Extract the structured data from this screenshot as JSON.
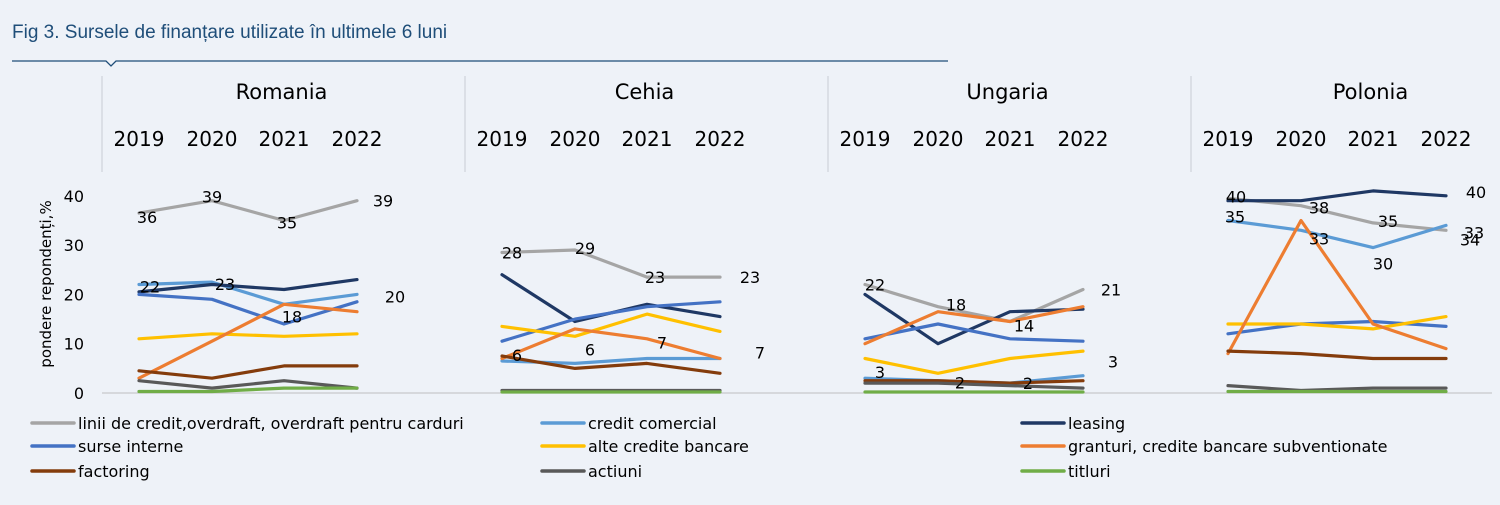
{
  "figure_title": "Fig 3. Sursele de finanțare utilizate în ultimele 6 luni",
  "chart_data": {
    "type": "line",
    "ylabel": "pondere repondenți,%",
    "ylim": [
      0,
      40
    ],
    "yticks": [
      "0",
      "10",
      "20",
      "30",
      "40"
    ],
    "grid": false,
    "legend_position": "bottom",
    "panels": [
      "Romania",
      "Cehia",
      "Ungaria",
      "Polonia"
    ],
    "years": [
      "2019",
      "2020",
      "2021",
      "2022"
    ],
    "series": [
      {
        "key": "linii",
        "name": "linii de credit,overdraft, overdraft pentru carduri",
        "color": "#a5a5a5",
        "values": [
          [
            36.5,
            39,
            35,
            39
          ],
          [
            28.5,
            29,
            23.5,
            23.5
          ],
          [
            22,
            17.5,
            14.5,
            21
          ],
          [
            39.5,
            38,
            34.5,
            33
          ]
        ]
      },
      {
        "key": "credit_comercial",
        "name": "credit comercial",
        "color": "#5b9bd5",
        "values": [
          [
            22,
            22.5,
            18,
            20
          ],
          [
            6.5,
            6,
            7,
            7
          ],
          [
            3,
            2.5,
            2,
            3.5
          ],
          [
            35,
            33,
            29.5,
            34
          ]
        ]
      },
      {
        "key": "leasing",
        "name": "leasing",
        "color": "#1f3864",
        "values": [
          [
            20.5,
            22,
            21,
            23
          ],
          [
            24,
            14.5,
            18,
            15.5
          ],
          [
            20,
            10,
            16.5,
            17
          ],
          [
            39,
            39,
            41,
            40
          ]
        ]
      },
      {
        "key": "surse_interne",
        "name": "surse interne",
        "color": "#4472c4",
        "values": [
          [
            20,
            19,
            14,
            18.5
          ],
          [
            10.5,
            15,
            17.5,
            18.5
          ],
          [
            11,
            14,
            11,
            10.5
          ],
          [
            12,
            14,
            14.5,
            13.5
          ]
        ]
      },
      {
        "key": "alte_credite",
        "name": "alte credite bancare",
        "color": "#ffc000",
        "values": [
          [
            11,
            12,
            11.5,
            12
          ],
          [
            13.5,
            11.5,
            16,
            12.5
          ],
          [
            7,
            4,
            7,
            8.5
          ],
          [
            14,
            14,
            13,
            15.5
          ]
        ]
      },
      {
        "key": "granturi",
        "name": "granturi, credite bancare subventionate",
        "color": "#ed7d31",
        "values": [
          [
            3,
            10.5,
            18,
            16.5
          ],
          [
            7,
            13,
            11,
            7
          ],
          [
            10,
            16.5,
            14.5,
            17.5
          ],
          [
            8,
            35,
            14,
            9
          ]
        ]
      },
      {
        "key": "factoring",
        "name": "factoring",
        "color": "#843c0c",
        "values": [
          [
            4.5,
            3,
            5.5,
            5.5
          ],
          [
            7.5,
            5,
            6,
            4
          ],
          [
            2.5,
            2.5,
            2,
            2.5
          ],
          [
            8.5,
            8,
            7,
            7
          ]
        ]
      },
      {
        "key": "actiuni",
        "name": "actiuni",
        "color": "#595959",
        "values": [
          [
            2.5,
            1,
            2.5,
            1
          ],
          [
            0.5,
            0.5,
            0.5,
            0.5
          ],
          [
            2,
            2,
            1.5,
            1
          ],
          [
            1.5,
            0.5,
            1,
            1
          ]
        ]
      },
      {
        "key": "titluri",
        "name": "titluri",
        "color": "#70ad47",
        "values": [
          [
            0.3,
            0.3,
            1,
            1
          ],
          [
            0.2,
            0.2,
            0.2,
            0.2
          ],
          [
            0.2,
            0.2,
            0.2,
            0.2
          ],
          [
            0.3,
            0.3,
            0.3,
            0.3
          ]
        ]
      }
    ],
    "data_labels": [
      {
        "panel": 0,
        "series": "linii",
        "year": 0,
        "text": "36"
      },
      {
        "panel": 0,
        "series": "linii",
        "year": 1,
        "text": "39"
      },
      {
        "panel": 0,
        "series": "linii",
        "year": 2,
        "text": "35"
      },
      {
        "panel": 0,
        "series": "linii",
        "year": 3,
        "text": "39"
      },
      {
        "panel": 0,
        "series": "credit_comercial",
        "year": 0,
        "text": "22"
      },
      {
        "panel": 0,
        "series": "credit_comercial",
        "year": 1,
        "text": "23"
      },
      {
        "panel": 0,
        "series": "credit_comercial",
        "year": 2,
        "text": "18"
      },
      {
        "panel": 0,
        "series": "credit_comercial",
        "year": 3,
        "text": "20"
      },
      {
        "panel": 1,
        "series": "linii",
        "year": 0,
        "text": "28"
      },
      {
        "panel": 1,
        "series": "linii",
        "year": 1,
        "text": "29"
      },
      {
        "panel": 1,
        "series": "linii",
        "year": 2,
        "text": "23"
      },
      {
        "panel": 1,
        "series": "linii",
        "year": 3,
        "text": "23"
      },
      {
        "panel": 1,
        "series": "credit_comercial",
        "year": 0,
        "text": "6"
      },
      {
        "panel": 1,
        "series": "credit_comercial",
        "year": 1,
        "text": "6"
      },
      {
        "panel": 1,
        "series": "credit_comercial",
        "year": 2,
        "text": "7"
      },
      {
        "panel": 1,
        "series": "credit_comercial",
        "year": 3,
        "text": "7"
      },
      {
        "panel": 2,
        "series": "linii",
        "year": 0,
        "text": "22"
      },
      {
        "panel": 2,
        "series": "linii",
        "year": 1,
        "text": "18"
      },
      {
        "panel": 2,
        "series": "linii",
        "year": 2,
        "text": "14"
      },
      {
        "panel": 2,
        "series": "linii",
        "year": 3,
        "text": "21"
      },
      {
        "panel": 2,
        "series": "credit_comercial",
        "year": 0,
        "text": "3"
      },
      {
        "panel": 2,
        "series": "credit_comercial",
        "year": 1,
        "text": "2"
      },
      {
        "panel": 2,
        "series": "credit_comercial",
        "year": 2,
        "text": "2"
      },
      {
        "panel": 2,
        "series": "credit_comercial",
        "year": 3,
        "text": "3"
      },
      {
        "panel": 3,
        "series": "linii",
        "year": 0,
        "text": "40"
      },
      {
        "panel": 3,
        "series": "linii",
        "year": 1,
        "text": "38"
      },
      {
        "panel": 3,
        "series": "linii",
        "year": 2,
        "text": "35"
      },
      {
        "panel": 3,
        "series": "linii",
        "year": 3,
        "text": "33"
      },
      {
        "panel": 3,
        "series": "credit_comercial",
        "year": 0,
        "text": "35"
      },
      {
        "panel": 3,
        "series": "credit_comercial",
        "year": 1,
        "text": "33"
      },
      {
        "panel": 3,
        "series": "credit_comercial",
        "year": 2,
        "text": "30"
      },
      {
        "panel": 3,
        "series": "credit_comercial",
        "year": 3,
        "text": "34"
      },
      {
        "panel": 3,
        "series": "leasing",
        "year": 3,
        "text": "40"
      }
    ]
  }
}
